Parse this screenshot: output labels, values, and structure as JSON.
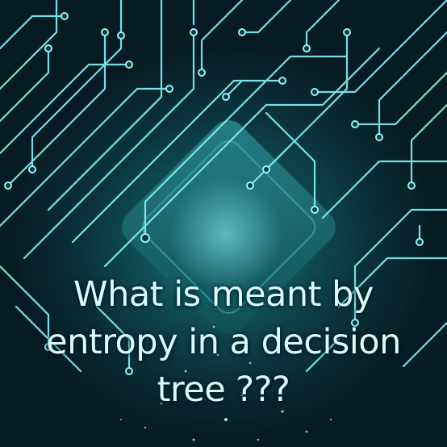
{
  "headline": {
    "line1": "What is meant by",
    "line2": "entropy in a decision",
    "line3": "tree ???"
  },
  "colors": {
    "background": "#06222a",
    "chip": "#1f6d75",
    "trace": "#7fe9f0",
    "text": "#d8fbff"
  },
  "icons": {
    "chip": "microchip-icon"
  }
}
